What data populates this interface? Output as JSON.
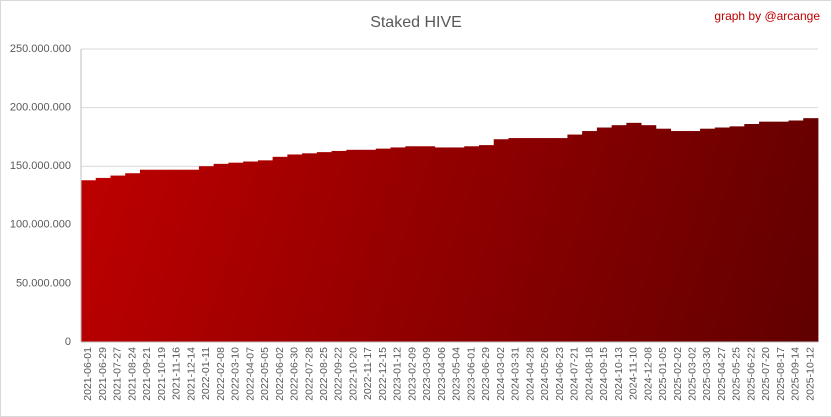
{
  "chart_data": {
    "type": "area-step",
    "title": "Staked HIVE",
    "annotation": "graph by @arcange",
    "categories": [
      "2021-06-01",
      "2021-06-29",
      "2021-07-27",
      "2021-08-24",
      "2021-09-21",
      "2021-10-19",
      "2021-11-16",
      "2021-12-14",
      "2022-01-11",
      "2022-02-08",
      "2022-03-10",
      "2022-04-07",
      "2022-05-05",
      "2022-06-02",
      "2022-06-30",
      "2022-07-28",
      "2022-08-25",
      "2022-09-22",
      "2022-10-20",
      "2022-11-17",
      "2022-12-15",
      "2023-01-12",
      "2023-02-09",
      "2023-03-09",
      "2023-04-06",
      "2023-05-04",
      "2023-06-01",
      "2023-06-29",
      "2024-03-02",
      "2024-03-31",
      "2024-04-28",
      "2024-05-26",
      "2024-06-23",
      "2024-07-21",
      "2024-08-18",
      "2024-09-15",
      "2024-10-13",
      "2024-11-10",
      "2024-12-08",
      "2025-01-05",
      "2025-02-02",
      "2025-03-02",
      "2025-03-30",
      "2025-04-27",
      "2025-05-25",
      "2025-06-22",
      "2025-07-20",
      "2025-08-17",
      "2025-09-14",
      "2025-10-12"
    ],
    "values": [
      138000000,
      140000000,
      142000000,
      144000000,
      147000000,
      147000000,
      147000000,
      147000000,
      150000000,
      152000000,
      153000000,
      154000000,
      155000000,
      158000000,
      160000000,
      161000000,
      162000000,
      163000000,
      164000000,
      164000000,
      165000000,
      166000000,
      167000000,
      167000000,
      166000000,
      166000000,
      167000000,
      168000000,
      173000000,
      174000000,
      174000000,
      174000000,
      174000000,
      177000000,
      180000000,
      183000000,
      185000000,
      187000000,
      185000000,
      182000000,
      180000000,
      180000000,
      182000000,
      183000000,
      184000000,
      186000000,
      188000000,
      188000000,
      189000000,
      191000000
    ],
    "colors": [
      "#c00000",
      "#600000"
    ],
    "ylim": [
      0,
      250000000
    ],
    "yticks": [
      0,
      {
        "value": 50000000,
        "label": "50.000.000"
      },
      {
        "value": 100000000,
        "label": "100.000.000"
      },
      {
        "value": 150000000,
        "label": "150.000.000"
      },
      {
        "value": 200000000,
        "label": "200.000.000"
      },
      {
        "value": 250000000,
        "label": "250.000.000"
      }
    ],
    "grid": true
  }
}
